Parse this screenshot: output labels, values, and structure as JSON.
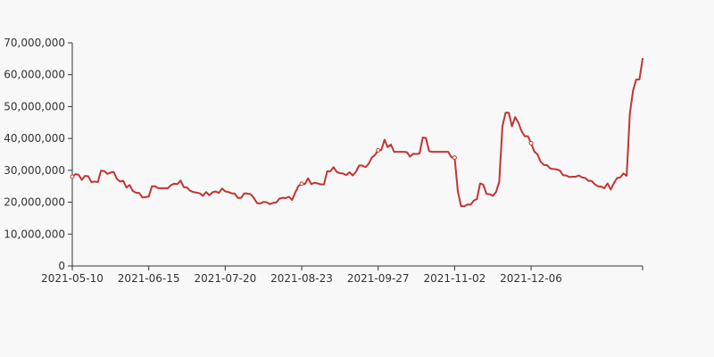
{
  "chart_data": {
    "type": "line",
    "title": "",
    "xlabel": "",
    "ylabel": "",
    "color": "#c23531",
    "ylim": [
      0,
      70000000
    ],
    "yticks": [
      "0",
      "10,000,000",
      "20,000,000",
      "30,000,000",
      "40,000,000",
      "50,000,000",
      "60,000,000",
      "70,000,000"
    ],
    "ytick_values": [
      0,
      10000000,
      20000000,
      30000000,
      40000000,
      50000000,
      60000000,
      70000000
    ],
    "xtick_labels": [
      "2021-05-10",
      "2021-06-15",
      "2021-07-20",
      "2021-08-23",
      "2021-09-27",
      "2021-11-02",
      "2021-12-06"
    ],
    "xtick_indices": [
      0,
      24,
      48,
      72,
      96,
      120,
      144
    ],
    "marker_indices": [
      0,
      72,
      96,
      120,
      144
    ],
    "grid": false,
    "series": [
      {
        "values": [
          28000000,
          28800000,
          28600000,
          27000000,
          28300000,
          28100000,
          26300000,
          26500000,
          26300000,
          29900000,
          29800000,
          28900000,
          29300000,
          29500000,
          27300000,
          26500000,
          26700000,
          24600000,
          25400000,
          23500000,
          23000000,
          22900000,
          21500000,
          21600000,
          21800000,
          25000000,
          25000000,
          24400000,
          24400000,
          24400000,
          24400000,
          25400000,
          25800000,
          25700000,
          26800000,
          24700000,
          24600000,
          23600000,
          23200000,
          23000000,
          22800000,
          22000000,
          23200000,
          22200000,
          23100000,
          23400000,
          22900000,
          24300000,
          23400000,
          23200000,
          22800000,
          22700000,
          21300000,
          21400000,
          22800000,
          22700000,
          22500000,
          21300000,
          19700000,
          19600000,
          20100000,
          20000000,
          19400000,
          19800000,
          19900000,
          21100000,
          21400000,
          21300000,
          21700000,
          20700000,
          23100000,
          25100000,
          25800000,
          25700000,
          27500000,
          25700000,
          26100000,
          25900000,
          25600000,
          25600000,
          29700000,
          29700000,
          31000000,
          29500000,
          29100000,
          29000000,
          28500000,
          29400000,
          28400000,
          29500000,
          31500000,
          31500000,
          31000000,
          32000000,
          34000000,
          34800000,
          36300000,
          36400000,
          39600000,
          37300000,
          38100000,
          35800000,
          35800000,
          35800000,
          35800000,
          35700000,
          34300000,
          35200000,
          35100000,
          35300000,
          40300000,
          40100000,
          36000000,
          35800000,
          35800000,
          35800000,
          35800000,
          35800000,
          35800000,
          34100000,
          34000000,
          23500000,
          18800000,
          18700000,
          19300000,
          19200000,
          20500000,
          21000000,
          25900000,
          25500000,
          22600000,
          22500000,
          22000000,
          23200000,
          26400000,
          43800000,
          48100000,
          48100000,
          43800000,
          46700000,
          45000000,
          42300000,
          40700000,
          40700000,
          38500000,
          35900000,
          35000000,
          32700000,
          31700000,
          31600000,
          30600000,
          30400000,
          30300000,
          30000000,
          28500000,
          28400000,
          27900000,
          28000000,
          28000000,
          28400000,
          27800000,
          27600000,
          26700000,
          26700000,
          25600000,
          25000000,
          24900000,
          24400000,
          25900000,
          24000000,
          26000000,
          27600000,
          27800000,
          29000000,
          28300000,
          47800000,
          55000000,
          58500000,
          58500000,
          65000000
        ]
      }
    ]
  }
}
